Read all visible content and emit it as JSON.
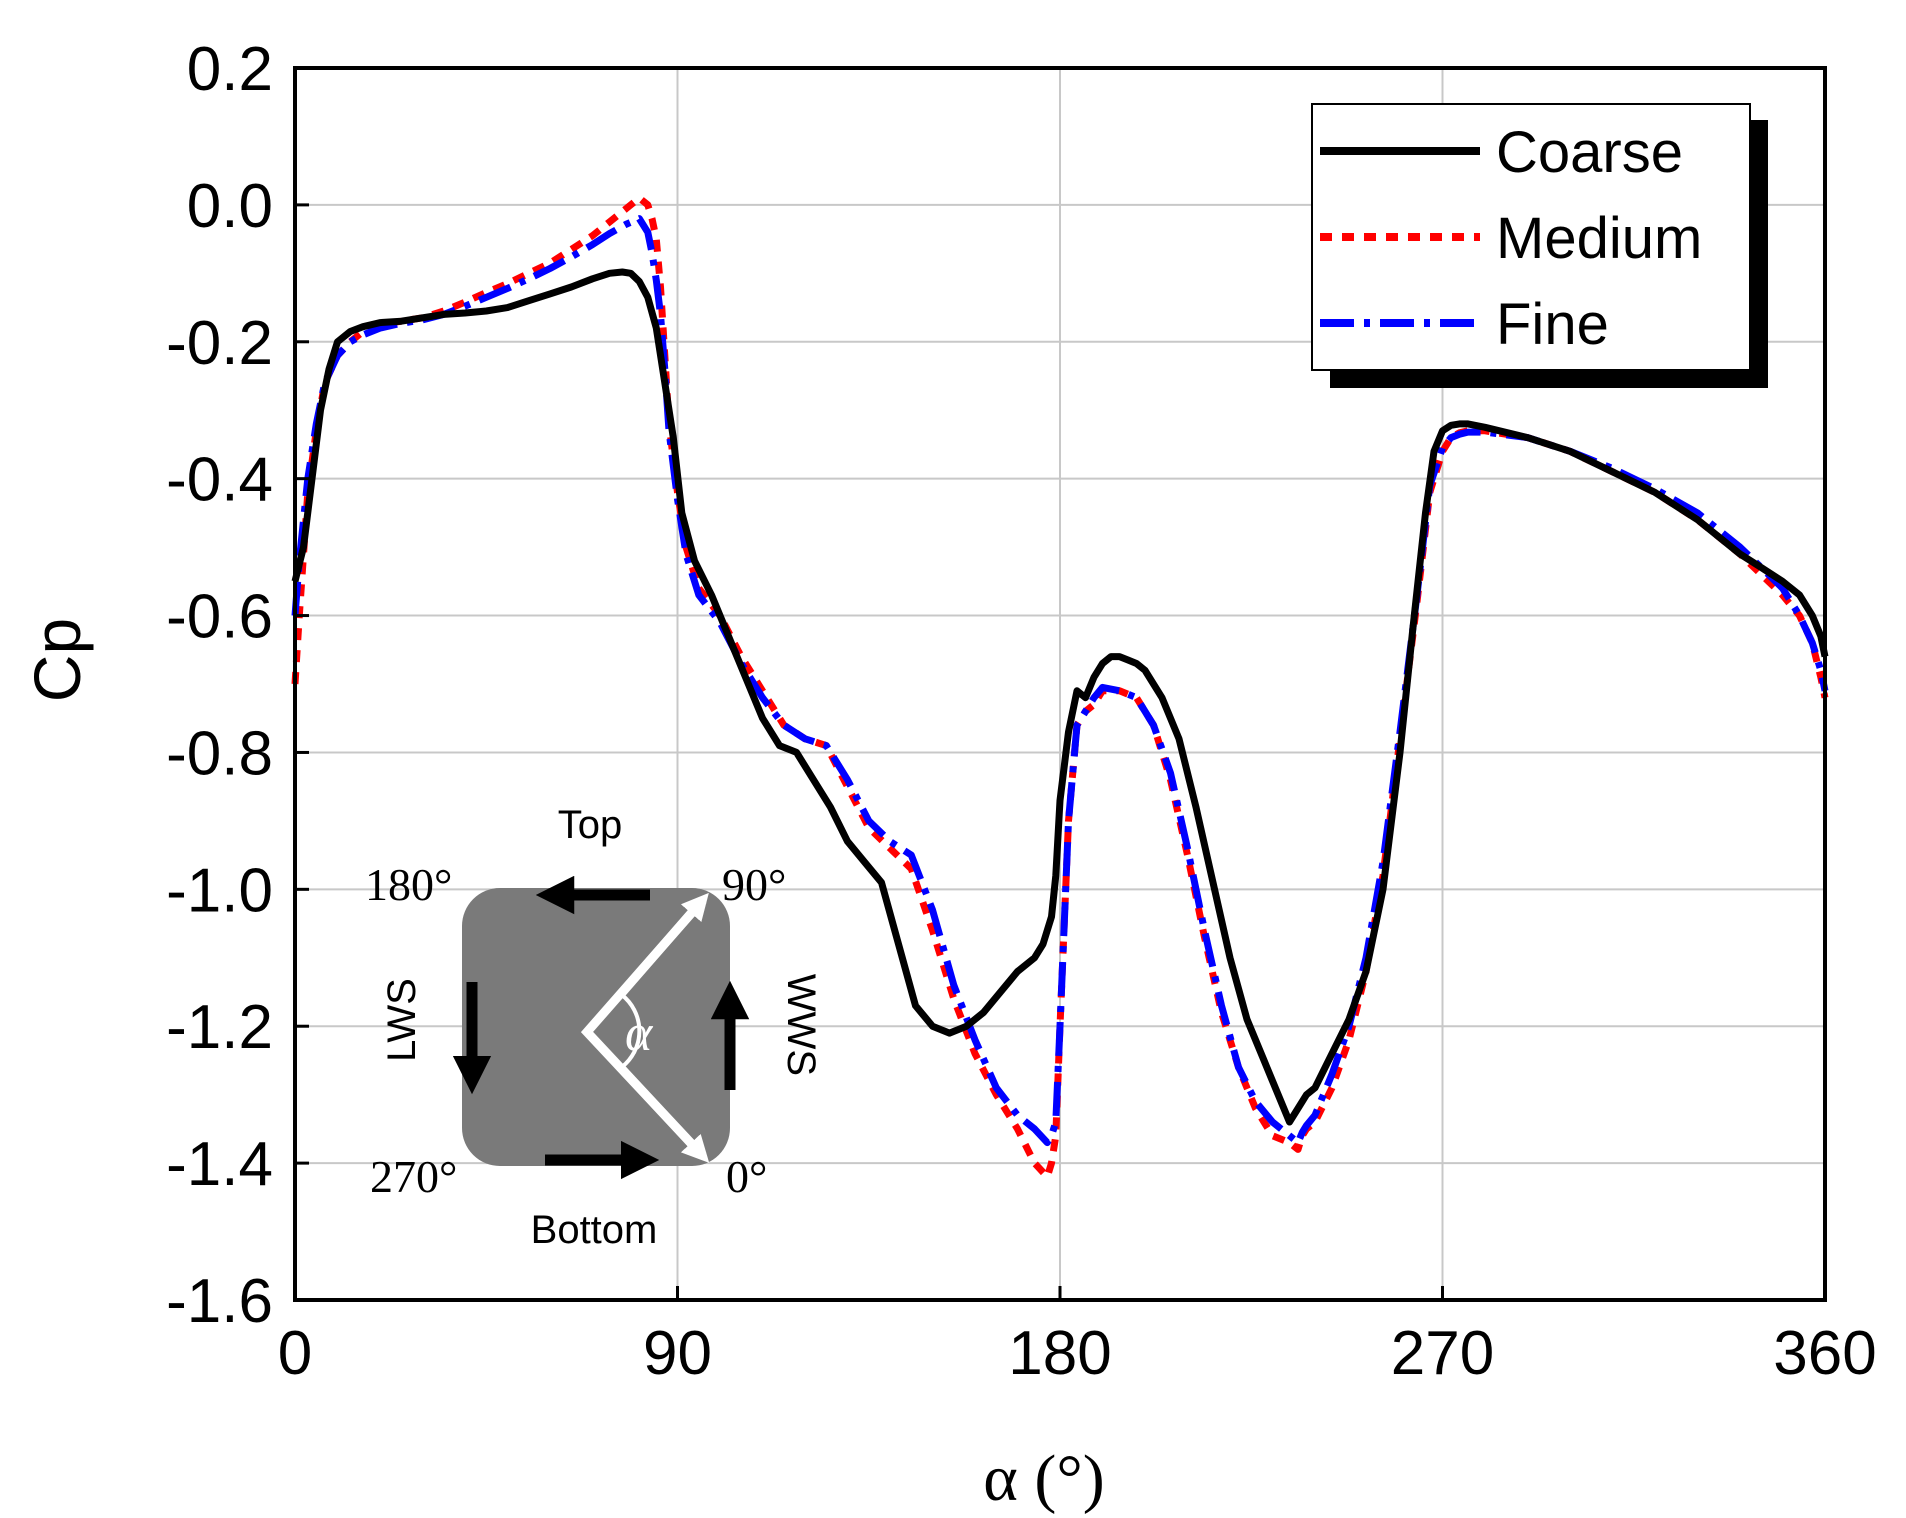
{
  "chart_data": {
    "type": "line",
    "title": "",
    "xlabel": "α (°)",
    "ylabel": "Cp",
    "xlim": [
      0,
      360
    ],
    "ylim": [
      -1.6,
      0.2
    ],
    "xticks": [
      0,
      90,
      180,
      270,
      360
    ],
    "xtick_labels": [
      "0",
      "90",
      "180",
      "270",
      "360"
    ],
    "yticks": [
      0.2,
      0.0,
      -0.2,
      -0.4,
      -0.6,
      -0.8,
      -1.0,
      -1.2,
      -1.4,
      -1.6
    ],
    "ytick_labels": [
      "0.2",
      "0.0",
      "-0.2",
      "-0.4",
      "-0.6",
      "-0.8",
      "-1.0",
      "-1.2",
      "-1.4",
      "-1.6"
    ],
    "grid": true,
    "legend_position": "top-right",
    "series": [
      {
        "name": "Coarse",
        "color": "#000000",
        "style": "solid",
        "x": [
          0,
          2,
          4,
          6,
          8,
          10,
          13,
          16,
          20,
          25,
          30,
          35,
          40,
          45,
          50,
          55,
          60,
          65,
          70,
          74,
          77,
          79,
          81,
          83,
          85,
          87,
          89,
          91,
          94,
          98,
          102,
          106,
          110,
          114,
          118,
          122,
          126,
          130,
          134,
          138,
          142,
          146,
          150,
          154,
          158,
          162,
          166,
          170,
          174,
          176,
          178,
          179,
          180,
          182,
          184,
          186,
          188,
          190,
          192,
          194,
          196,
          198,
          200,
          204,
          208,
          212,
          216,
          220,
          224,
          228,
          230,
          232,
          234,
          236,
          238,
          240,
          244,
          248,
          252,
          256,
          260,
          263,
          266,
          268,
          270,
          272,
          274,
          276,
          280,
          290,
          300,
          310,
          320,
          330,
          340,
          345,
          350,
          354,
          357,
          359,
          360
        ],
        "y": [
          -0.55,
          -0.5,
          -0.4,
          -0.3,
          -0.24,
          -0.2,
          -0.185,
          -0.178,
          -0.172,
          -0.17,
          -0.165,
          -0.16,
          -0.158,
          -0.155,
          -0.15,
          -0.14,
          -0.13,
          -0.12,
          -0.108,
          -0.1,
          -0.098,
          -0.1,
          -0.112,
          -0.135,
          -0.18,
          -0.26,
          -0.34,
          -0.45,
          -0.52,
          -0.57,
          -0.63,
          -0.69,
          -0.75,
          -0.79,
          -0.8,
          -0.84,
          -0.88,
          -0.93,
          -0.96,
          -0.99,
          -1.08,
          -1.17,
          -1.2,
          -1.21,
          -1.2,
          -1.18,
          -1.15,
          -1.12,
          -1.1,
          -1.08,
          -1.04,
          -0.98,
          -0.87,
          -0.77,
          -0.71,
          -0.72,
          -0.69,
          -0.67,
          -0.66,
          -0.66,
          -0.665,
          -0.67,
          -0.68,
          -0.72,
          -0.78,
          -0.88,
          -0.99,
          -1.1,
          -1.19,
          -1.25,
          -1.28,
          -1.31,
          -1.34,
          -1.32,
          -1.3,
          -1.29,
          -1.24,
          -1.19,
          -1.12,
          -1.0,
          -0.8,
          -0.62,
          -0.45,
          -0.36,
          -0.33,
          -0.322,
          -0.32,
          -0.32,
          -0.325,
          -0.34,
          -0.36,
          -0.39,
          -0.42,
          -0.46,
          -0.51,
          -0.53,
          -0.55,
          -0.57,
          -0.6,
          -0.63,
          -0.66
        ]
      },
      {
        "name": "Medium",
        "color": "#ff0000",
        "style": "dotted",
        "x": [
          0,
          1,
          3,
          5,
          7,
          10,
          13,
          16,
          20,
          25,
          30,
          35,
          40,
          45,
          50,
          55,
          60,
          65,
          70,
          74,
          78,
          81,
          83,
          84,
          85,
          86,
          87,
          88,
          90,
          92,
          95,
          100,
          105,
          110,
          115,
          120,
          125,
          130,
          135,
          140,
          145,
          150,
          155,
          160,
          165,
          170,
          174,
          177,
          178,
          179,
          180,
          182,
          184,
          186,
          188,
          190,
          194,
          198,
          202,
          206,
          210,
          214,
          218,
          222,
          226,
          230,
          234,
          236,
          237,
          238,
          240,
          244,
          248,
          252,
          256,
          260,
          264,
          267,
          270,
          272,
          274,
          276,
          280,
          290,
          300,
          310,
          320,
          330,
          340,
          345,
          350,
          354,
          357,
          359,
          360
        ],
        "y": [
          -0.7,
          -0.6,
          -0.42,
          -0.33,
          -0.26,
          -0.22,
          -0.2,
          -0.185,
          -0.175,
          -0.17,
          -0.165,
          -0.155,
          -0.142,
          -0.128,
          -0.115,
          -0.1,
          -0.085,
          -0.065,
          -0.045,
          -0.025,
          -0.005,
          0.01,
          0.0,
          -0.02,
          -0.05,
          -0.12,
          -0.22,
          -0.32,
          -0.42,
          -0.5,
          -0.56,
          -0.6,
          -0.66,
          -0.71,
          -0.76,
          -0.78,
          -0.79,
          -0.85,
          -0.91,
          -0.94,
          -0.97,
          -1.06,
          -1.16,
          -1.24,
          -1.3,
          -1.35,
          -1.4,
          -1.42,
          -1.4,
          -1.36,
          -1.2,
          -0.9,
          -0.76,
          -0.74,
          -0.73,
          -0.71,
          -0.71,
          -0.72,
          -0.76,
          -0.84,
          -0.95,
          -1.07,
          -1.18,
          -1.26,
          -1.32,
          -1.36,
          -1.37,
          -1.38,
          -1.36,
          -1.35,
          -1.34,
          -1.29,
          -1.22,
          -1.12,
          -0.98,
          -0.78,
          -0.58,
          -0.42,
          -0.36,
          -0.34,
          -0.333,
          -0.33,
          -0.33,
          -0.34,
          -0.36,
          -0.39,
          -0.42,
          -0.46,
          -0.51,
          -0.54,
          -0.57,
          -0.6,
          -0.64,
          -0.69,
          -0.72
        ]
      },
      {
        "name": "Fine",
        "color": "#0000ff",
        "style": "dashdot",
        "x": [
          0,
          1,
          3,
          5,
          7,
          10,
          13,
          16,
          20,
          25,
          30,
          35,
          40,
          45,
          50,
          55,
          60,
          65,
          70,
          74,
          78,
          81,
          83,
          84,
          85,
          86,
          87,
          88,
          90,
          92,
          95,
          100,
          105,
          110,
          115,
          120,
          125,
          130,
          135,
          140,
          145,
          150,
          155,
          160,
          165,
          170,
          174,
          177,
          178,
          179,
          180,
          182,
          184,
          186,
          188,
          190,
          194,
          198,
          202,
          206,
          210,
          214,
          218,
          222,
          226,
          230,
          234,
          236,
          237,
          238,
          240,
          244,
          248,
          252,
          256,
          260,
          264,
          267,
          270,
          272,
          274,
          276,
          280,
          290,
          300,
          310,
          320,
          330,
          340,
          345,
          350,
          354,
          357,
          359,
          360
        ],
        "y": [
          -0.6,
          -0.52,
          -0.4,
          -0.32,
          -0.26,
          -0.22,
          -0.2,
          -0.19,
          -0.18,
          -0.173,
          -0.168,
          -0.16,
          -0.148,
          -0.135,
          -0.122,
          -0.108,
          -0.093,
          -0.076,
          -0.058,
          -0.042,
          -0.028,
          -0.02,
          -0.04,
          -0.07,
          -0.11,
          -0.16,
          -0.24,
          -0.33,
          -0.43,
          -0.51,
          -0.57,
          -0.61,
          -0.67,
          -0.72,
          -0.76,
          -0.78,
          -0.79,
          -0.84,
          -0.9,
          -0.93,
          -0.95,
          -1.03,
          -1.14,
          -1.22,
          -1.29,
          -1.33,
          -1.35,
          -1.37,
          -1.36,
          -1.34,
          -1.2,
          -0.9,
          -0.76,
          -0.74,
          -0.72,
          -0.705,
          -0.71,
          -0.72,
          -0.76,
          -0.83,
          -0.94,
          -1.06,
          -1.17,
          -1.26,
          -1.31,
          -1.34,
          -1.36,
          -1.37,
          -1.355,
          -1.345,
          -1.33,
          -1.27,
          -1.2,
          -1.1,
          -0.96,
          -0.77,
          -0.57,
          -0.41,
          -0.355,
          -0.34,
          -0.335,
          -0.332,
          -0.332,
          -0.34,
          -0.36,
          -0.385,
          -0.415,
          -0.45,
          -0.5,
          -0.53,
          -0.56,
          -0.6,
          -0.64,
          -0.68,
          -0.71
        ]
      }
    ]
  },
  "inset": {
    "top_label": "Top",
    "bottom_label": "Bottom",
    "left_label": "LWS",
    "right_label": "WWS",
    "angle_symbol": "α",
    "corner_labels": {
      "top_left": "180°",
      "top_right": "90°",
      "bottom_left": "270°",
      "bottom_right": "0°"
    }
  }
}
